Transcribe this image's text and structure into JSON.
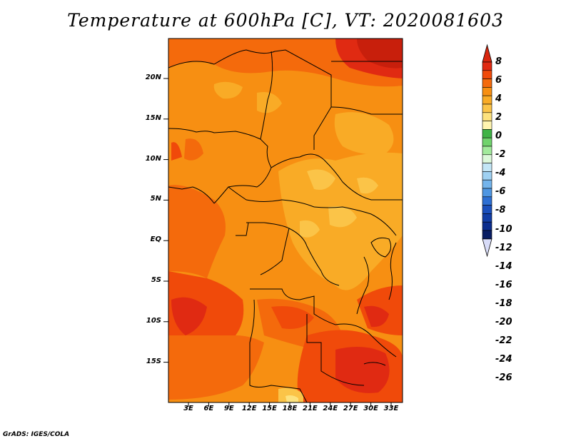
{
  "title": "Temperature at 600hPa [C], VT: 2020081603",
  "credit": "GrADS: IGES/COLA",
  "lat_ticks": [
    "20N",
    "15N",
    "10N",
    "5N",
    "EQ",
    "5S",
    "10S",
    "15S"
  ],
  "lon_ticks": [
    "3E",
    "6E",
    "9E",
    "12E",
    "15E",
    "18E",
    "21E",
    "24E",
    "27E",
    "30E",
    "33E"
  ],
  "colorbar": {
    "labels": [
      "8",
      "6",
      "4",
      "2",
      "0",
      "-2",
      "-4",
      "-6",
      "-8",
      "-10",
      "-12",
      "-14",
      "-16",
      "-18",
      "-20",
      "-22",
      "-24",
      "-26"
    ],
    "colors": [
      "#e02a12",
      "#f04a0a",
      "#f46a0c",
      "#f78f12",
      "#f9ab26",
      "#fbc448",
      "#fde27e",
      "#fff4b0",
      "#3fb346",
      "#70d36c",
      "#a2ea9c",
      "#dcf8da",
      "#c3e6f6",
      "#9fd1f2",
      "#73b4ec",
      "#4e96e2",
      "#2d6fd3",
      "#1a4fbc",
      "#113da6",
      "#0b2d8e",
      "#081d63"
    ],
    "top_arrow_color": "#d8260e",
    "bottom_arrow_color": "#d8dcf8"
  }
}
